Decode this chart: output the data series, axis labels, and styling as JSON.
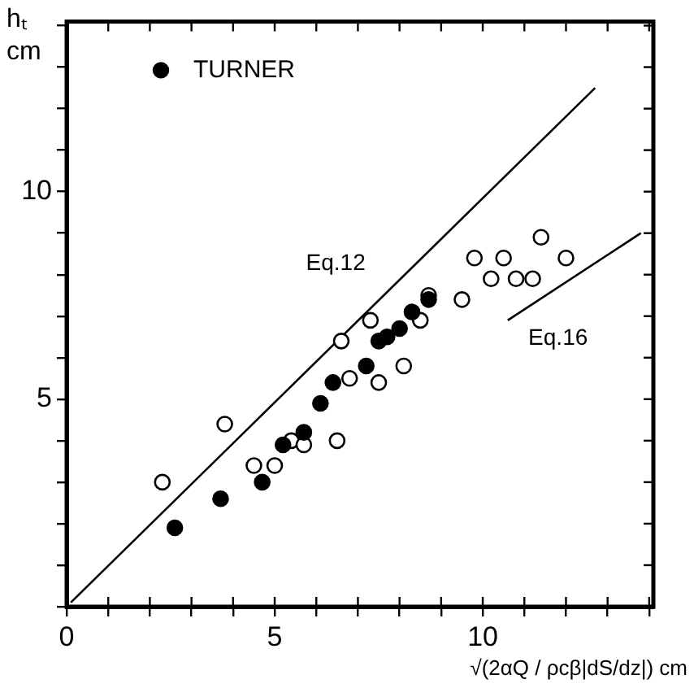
{
  "chart_data": {
    "type": "scatter",
    "ylabel": "hₜ cm",
    "xlabel": "√(2αQ / ρcβ|dS/dz|) cm",
    "legend": "top left",
    "marker": "circle",
    "grid": false,
    "xlim": [
      0,
      14.1
    ],
    "xticks": [
      {
        "value": 0,
        "label": "0"
      },
      {
        "value": 1,
        "label": null
      },
      {
        "value": 2,
        "label": null
      },
      {
        "value": 3,
        "label": null
      },
      {
        "value": 4,
        "label": null
      },
      5,
      {
        "value": 6,
        "label": null
      },
      {
        "value": 7,
        "label": null
      },
      {
        "value": 8,
        "label": null
      },
      {
        "value": 9,
        "label": null
      },
      10,
      {
        "value": 11,
        "label": null
      },
      {
        "value": 12,
        "label": null
      },
      {
        "value": 13,
        "label": null
      },
      {
        "value": 14,
        "label": null
      }
    ],
    "ylim": [
      0,
      14.1
    ],
    "yticks": [
      {
        "value": 0,
        "label": null
      },
      {
        "value": 1,
        "label": null
      },
      {
        "value": 2,
        "label": null
      },
      {
        "value": 3,
        "label": null
      },
      {
        "value": 4,
        "label": null
      },
      5,
      {
        "value": 6,
        "label": null
      },
      {
        "value": 7,
        "label": null
      },
      {
        "value": 8,
        "label": null
      },
      {
        "value": 9,
        "label": null
      },
      10,
      {
        "value": 11,
        "label": null
      },
      {
        "value": 12,
        "label": null
      },
      {
        "value": 13,
        "label": null
      },
      {
        "value": 14,
        "label": null
      }
    ],
    "series": [
      {
        "name": "TURNER",
        "color": "#000000",
        "x": [
          2.6,
          3.7,
          4.7,
          5.2,
          5.7,
          6.1,
          6.4,
          7.2,
          7.5,
          7.7,
          8.0,
          8.3,
          8.7
        ],
        "values": [
          1.9,
          2.6,
          3.0,
          3.9,
          4.2,
          4.9,
          5.4,
          5.8,
          6.4,
          6.5,
          6.7,
          7.1,
          7.4
        ]
      },
      {
        "color": "#000000",
        "x": [
          2.3,
          3.8,
          4.5,
          5.0,
          5.4,
          5.7,
          6.5,
          6.6,
          6.8,
          7.3,
          7.5,
          8.1,
          8.5,
          8.7,
          9.5,
          9.8,
          10.2,
          10.5,
          10.8,
          11.2,
          11.4,
          12.0
        ],
        "values": [
          3.0,
          4.4,
          3.4,
          3.4,
          4.0,
          3.9,
          4.0,
          6.4,
          5.5,
          6.9,
          5.4,
          5.8,
          6.9,
          7.5,
          7.4,
          8.4,
          7.9,
          8.4,
          7.9,
          7.9,
          8.9,
          8.4
        ]
      },
      {
        "name": "Eq.12",
        "type": "line",
        "marker": "none",
        "color": "#000000",
        "x": [
          0.1,
          12.7
        ],
        "values": [
          0.1,
          12.5
        ]
      },
      {
        "name": "Eq.16",
        "type": "line",
        "marker": "none",
        "color": "#000000",
        "x": [
          10.6,
          13.8
        ],
        "values": [
          6.9,
          9.0
        ]
      }
    ]
  }
}
